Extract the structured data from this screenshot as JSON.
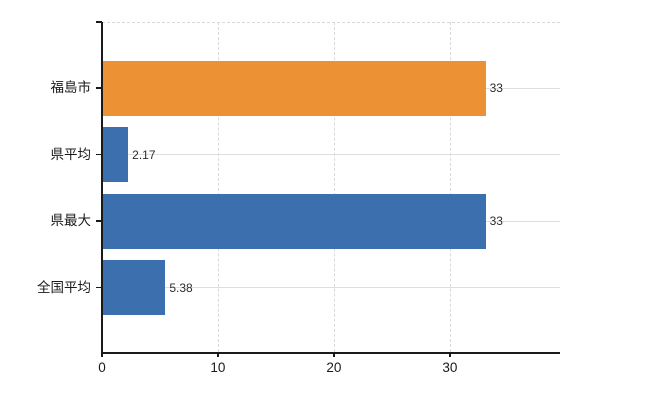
{
  "chart_data": {
    "type": "bar",
    "orientation": "horizontal",
    "title": "",
    "xlabel": "",
    "ylabel": "",
    "categories": [
      "福島市",
      "県平均",
      "県最大",
      "全国平均"
    ],
    "values": [
      33,
      2.17,
      33,
      5.38
    ],
    "value_labels": [
      "33",
      "2.17",
      "33",
      "5.38"
    ],
    "bar_colors": [
      "#ED9234",
      "#3C6FAE",
      "#3C6FAE",
      "#3C6FAE"
    ],
    "x_ticks": [
      "0",
      "10",
      "20",
      "30"
    ],
    "x_tick_values": [
      0,
      10,
      20,
      30
    ],
    "xlim": [
      0,
      39.5
    ],
    "legend": "none",
    "grid": {
      "vertical": "dashed",
      "horizontal_category_lines": true,
      "top_border": "dashed"
    }
  },
  "colors": {
    "background": "#ffffff",
    "axis": "#1a1a1a",
    "vertical_grid": "#d9d9d9",
    "horizontal_grid": "#dce0da",
    "category_text": "#1a1a1a",
    "tick_text": "#1a1a1a",
    "value_text": "#2e2e2e",
    "orange_bar": "#ED9234",
    "blue_bar": "#3C6FAE"
  }
}
